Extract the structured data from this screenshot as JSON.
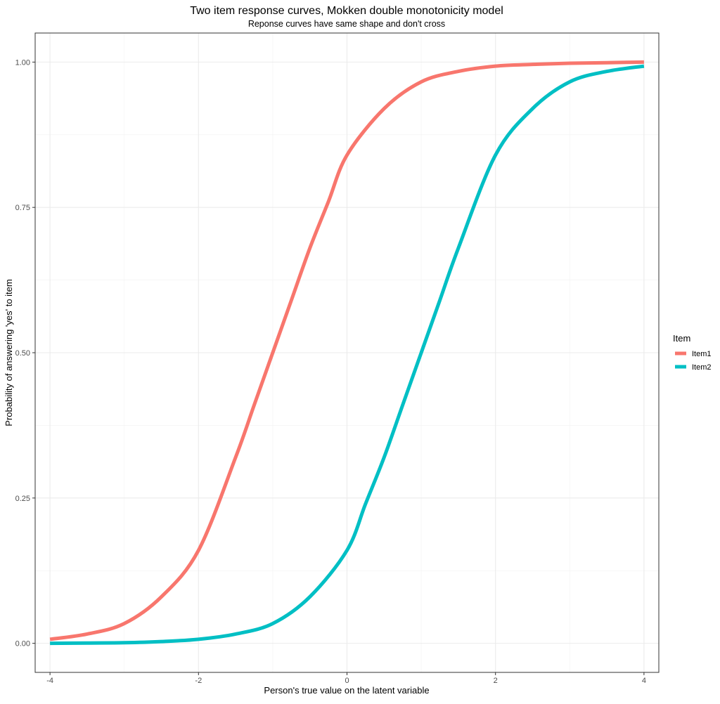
{
  "chart_data": {
    "type": "line",
    "title": "Two item response curves, Mokken double monotonicity model",
    "subtitle": "Reponse curves have same shape and don't cross",
    "xlabel": "Person's true value on the latent variable",
    "ylabel": "Probability of answering 'yes' to item",
    "xlim": [
      -4.2,
      4.2
    ],
    "ylim": [
      -0.05,
      1.05
    ],
    "x_ticks": [
      -4,
      -2,
      0,
      2,
      4
    ],
    "x_tick_labels": [
      "-4",
      "-2",
      "0",
      "2",
      "4"
    ],
    "y_ticks": [
      0,
      0.25,
      0.5,
      0.75,
      1
    ],
    "y_tick_labels": [
      "0.00",
      "0.25",
      "0.50",
      "0.75",
      "1.00"
    ],
    "grid": true,
    "legend": {
      "title": "Item",
      "placement": "right"
    },
    "series": [
      {
        "name": "Item1",
        "color": "#F8766D",
        "x": [
          -4,
          -3.5,
          -3,
          -2.5,
          -2,
          -1.5,
          -1.25,
          -1,
          -0.75,
          -0.5,
          -0.25,
          0,
          0.5,
          1,
          1.5,
          2,
          2.5,
          3,
          3.5,
          4
        ],
        "y": [
          0.007,
          0.016,
          0.034,
          0.08,
          0.16,
          0.32,
          0.41,
          0.5,
          0.59,
          0.68,
          0.76,
          0.84,
          0.92,
          0.966,
          0.984,
          0.993,
          0.996,
          0.998,
          0.999,
          1.0
        ]
      },
      {
        "name": "Item2",
        "color": "#00BFC4",
        "x": [
          -4,
          -3.5,
          -3,
          -2.5,
          -2,
          -1.5,
          -1,
          -0.5,
          0,
          0.25,
          0.5,
          0.75,
          1,
          1.25,
          1.5,
          2,
          2.5,
          3,
          3.5,
          4
        ],
        "y": [
          0.0,
          0.0005,
          0.001,
          0.003,
          0.007,
          0.016,
          0.034,
          0.08,
          0.16,
          0.24,
          0.32,
          0.41,
          0.5,
          0.59,
          0.68,
          0.84,
          0.92,
          0.966,
          0.984,
          0.993
        ]
      }
    ]
  }
}
